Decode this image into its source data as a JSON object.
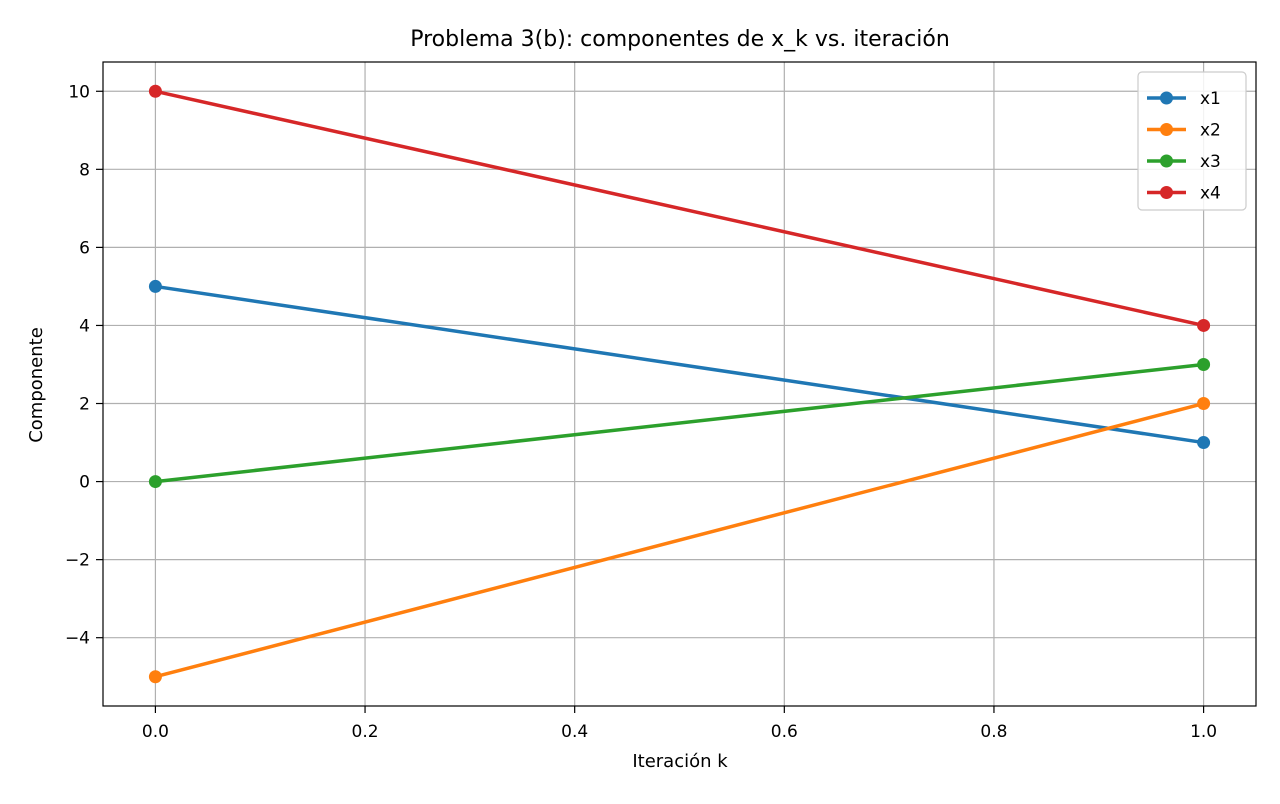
{
  "chart_data": {
    "type": "line",
    "title": "Problema 3(b): componentes de x_k vs. iteración",
    "xlabel": "Iteración k",
    "ylabel": "Componente",
    "xlim": [
      -0.05,
      1.05
    ],
    "ylim": [
      -5.75,
      10.75
    ],
    "xticks": [
      0.0,
      0.2,
      0.4,
      0.6,
      0.8,
      1.0
    ],
    "xtick_labels": [
      "0.0",
      "0.2",
      "0.4",
      "0.6",
      "0.8",
      "1.0"
    ],
    "yticks": [
      -4,
      -2,
      0,
      2,
      4,
      6,
      8,
      10
    ],
    "ytick_labels": [
      "−4",
      "−2",
      "0",
      "2",
      "4",
      "6",
      "8",
      "10"
    ],
    "grid": true,
    "legend_position": "top-right",
    "x": [
      0,
      1
    ],
    "series": [
      {
        "name": "x1",
        "values": [
          5,
          1
        ],
        "color": "#1f77b4"
      },
      {
        "name": "x2",
        "values": [
          -5,
          2
        ],
        "color": "#ff7f0e"
      },
      {
        "name": "x3",
        "values": [
          0,
          3
        ],
        "color": "#2ca02c"
      },
      {
        "name": "x4",
        "values": [
          10,
          4
        ],
        "color": "#d62728"
      }
    ]
  }
}
